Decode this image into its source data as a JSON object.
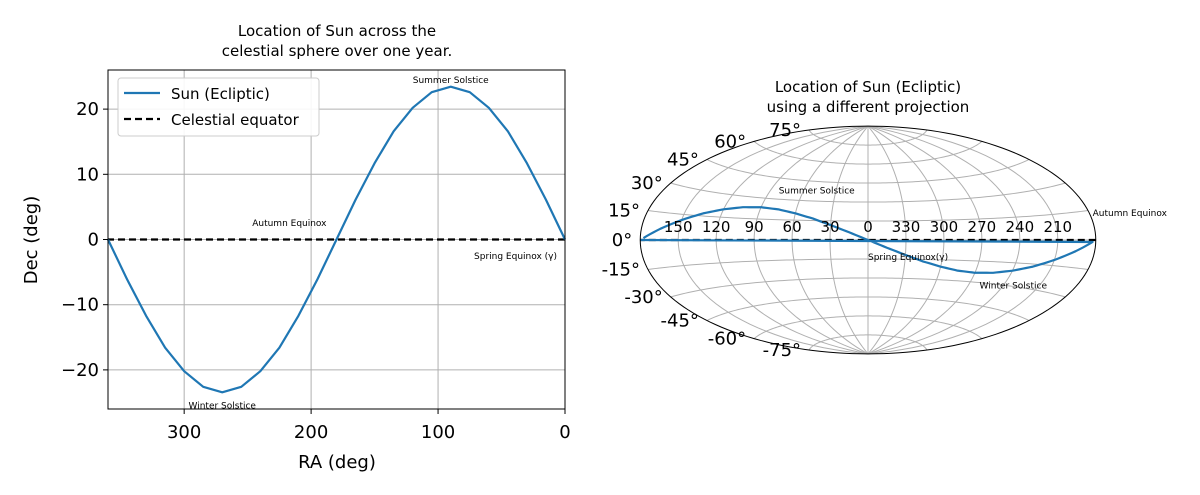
{
  "chart_data": [
    {
      "type": "line",
      "title": "Location of Sun across the\ncelestial sphere over one year.",
      "xlabel": "RA (deg)",
      "ylabel": "Dec (deg)",
      "xlim": [
        360,
        0
      ],
      "ylim": [
        -26,
        26
      ],
      "xticks": [
        300,
        200,
        100,
        0
      ],
      "yticks": [
        20,
        10,
        0,
        -10,
        -20
      ],
      "grid": true,
      "legend": "top-left",
      "series": [
        {
          "name": "Sun (Ecliptic)",
          "color": "#1f77b4",
          "x": [
            0,
            15,
            30,
            45,
            60,
            75,
            90,
            105,
            120,
            135,
            150,
            165,
            180,
            195,
            210,
            225,
            240,
            255,
            270,
            285,
            300,
            315,
            330,
            345,
            360
          ],
          "y": [
            0,
            6.1,
            11.7,
            16.6,
            20.2,
            22.6,
            23.44,
            22.6,
            20.2,
            16.6,
            11.7,
            6.1,
            0,
            -6.1,
            -11.7,
            -16.6,
            -20.2,
            -22.6,
            -23.44,
            -22.6,
            -20.2,
            -16.6,
            -11.7,
            -6.1,
            0
          ]
        },
        {
          "name": "Celestial equator",
          "color": "#000000",
          "style": "dashed",
          "x": [
            0,
            360
          ],
          "y": [
            0,
            0
          ]
        }
      ],
      "annotations": [
        {
          "text": "Summer Solstice",
          "x": 90,
          "y": 24.5
        },
        {
          "text": "Autumn Equinox",
          "x": 180,
          "y": 2.5
        },
        {
          "text": "Spring Equinox (γ)",
          "x": 0,
          "y": -2.5
        },
        {
          "text": "Winter Solstice",
          "x": 270,
          "y": -25.5
        }
      ]
    },
    {
      "type": "line",
      "projection": "aitoff",
      "title": "Location of Sun (Ecliptic)\nusing a different projection",
      "xticklabels": [
        "150",
        "120",
        "90",
        "60",
        "30",
        "0",
        "330",
        "300",
        "270",
        "240",
        "210"
      ],
      "yticklabels": [
        "-75°",
        "-60°",
        "-45°",
        "-30°",
        "-15°",
        "0°",
        "15°",
        "30°",
        "45°",
        "60°",
        "75°"
      ],
      "grid": true,
      "series": [
        {
          "color": "#1f77b4",
          "x": [
            0,
            15,
            30,
            45,
            60,
            75,
            90,
            105,
            120,
            135,
            150,
            165,
            180,
            195,
            210,
            225,
            240,
            255,
            270,
            285,
            300,
            315,
            330,
            345,
            360
          ],
          "y": [
            0,
            6.1,
            11.7,
            16.6,
            20.2,
            22.6,
            23.44,
            22.6,
            20.2,
            16.6,
            11.7,
            6.1,
            0,
            -6.1,
            -11.7,
            -16.6,
            -20.2,
            -22.6,
            -23.44,
            -22.6,
            -20.2,
            -16.6,
            -11.7,
            -6.1,
            0
          ]
        },
        {
          "color": "#000000",
          "style": "dashed",
          "x": [
            0,
            360
          ],
          "y": [
            0,
            0
          ]
        }
      ],
      "annotations": [
        {
          "text": "Summer Solstice",
          "x": 90,
          "y": 26
        },
        {
          "text": "Autumn Equinox",
          "x": 180,
          "y": 6
        },
        {
          "text": "Spring Equinox(γ)",
          "x": 0,
          "y": -3
        },
        {
          "text": "Winter Solstice",
          "x": 270,
          "y": -26
        }
      ]
    }
  ]
}
